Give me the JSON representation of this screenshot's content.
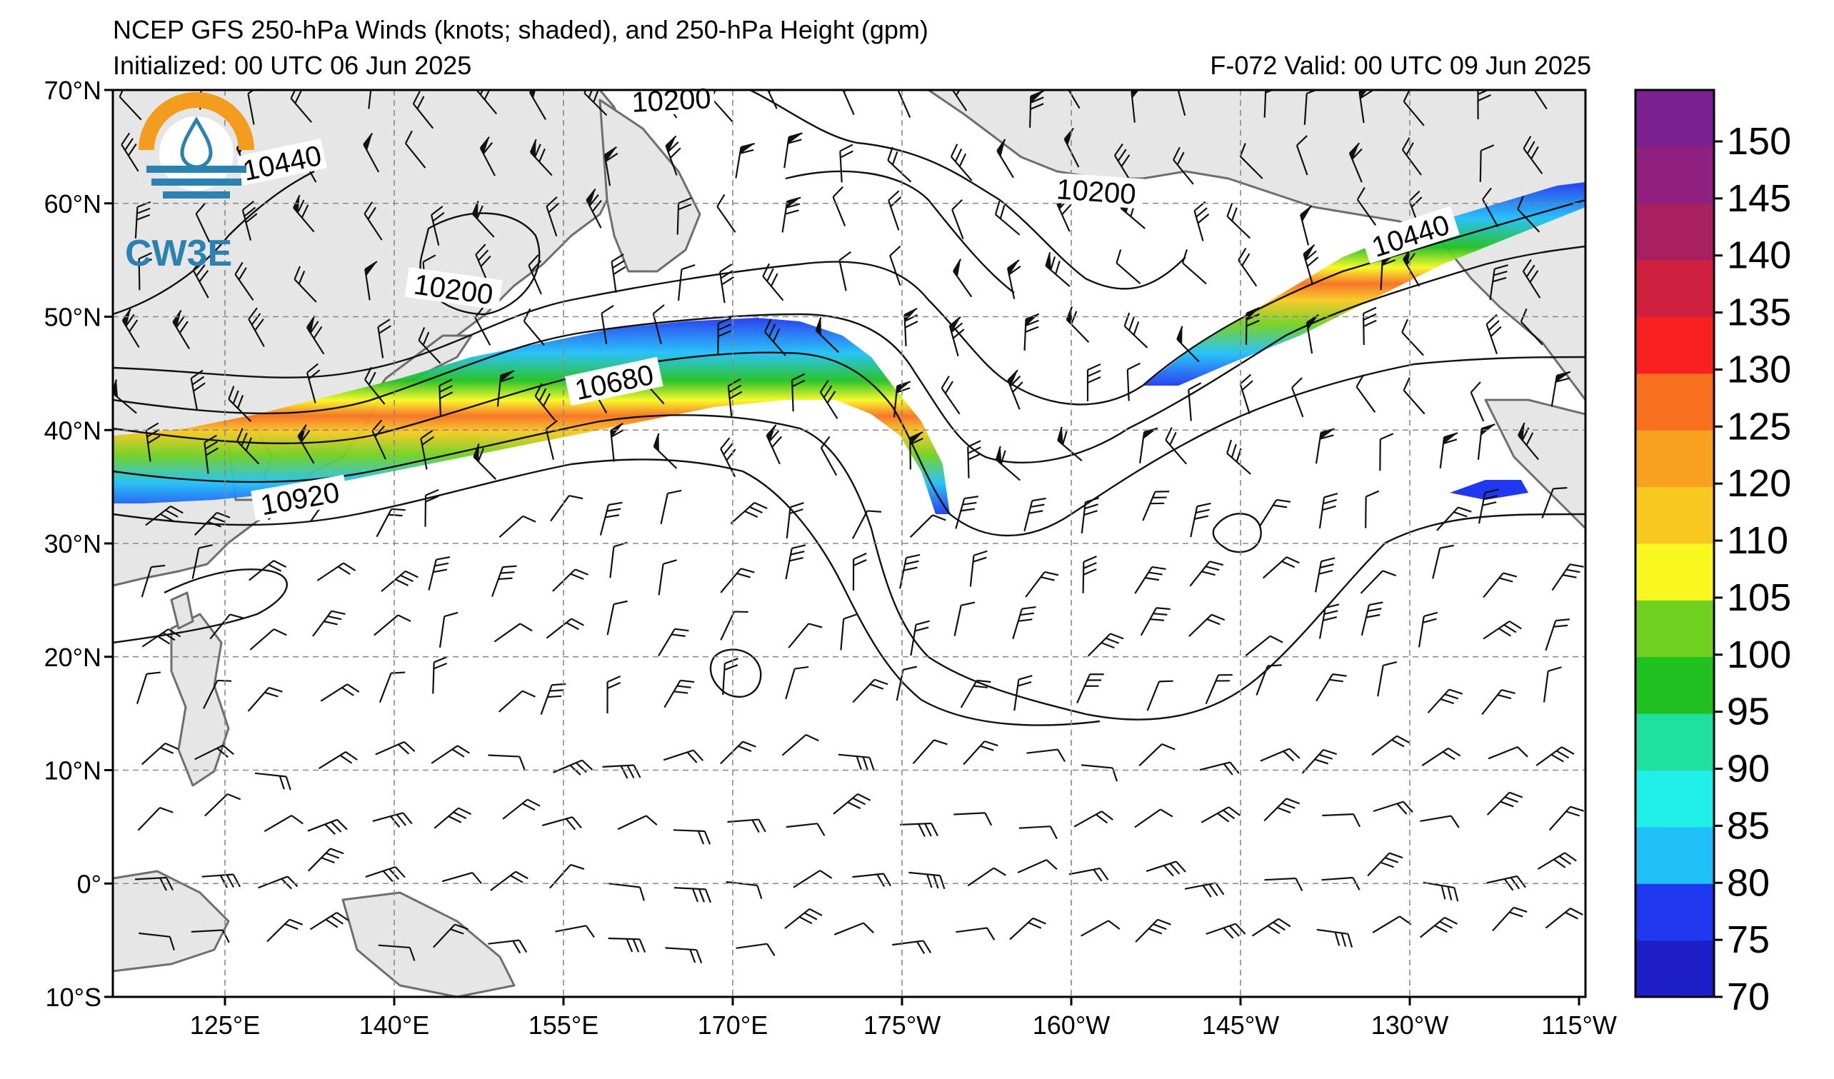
{
  "title": {
    "line1": "NCEP GFS 250-hPa Winds (knots; shaded), and 250-hPa Height (gpm)",
    "line2": "Initialized: 00 UTC 06 Jun 2025",
    "valid": "F-072  Valid: 00 UTC 09 Jun 2025"
  },
  "logo": {
    "text": "CW3E",
    "icon": "cw3e-water-drop-logo"
  },
  "map": {
    "lat_labels": [
      "70°N",
      "60°N",
      "50°N",
      "40°N",
      "30°N",
      "20°N",
      "10°N",
      "0°",
      "10°S"
    ],
    "lon_labels": [
      "125°E",
      "140°E",
      "155°E",
      "170°E",
      "175°W",
      "160°W",
      "145°W",
      "130°W",
      "115°W"
    ],
    "contour_labels": [
      "10200",
      "10440",
      "10200",
      "10200",
      "10440",
      "10680",
      "10920"
    ],
    "land_color": "#e6e6e6",
    "coast_color": "#6e6e6e",
    "grid_color": "#888888"
  },
  "colorbar": {
    "unit": "knots",
    "levels": [
      70,
      75,
      80,
      85,
      90,
      95,
      100,
      105,
      110,
      120,
      125,
      130,
      135,
      140,
      145,
      150
    ],
    "labels": [
      "150",
      "145",
      "140",
      "135",
      "130",
      "125",
      "120",
      "110",
      "105",
      "100",
      "95",
      "90",
      "85",
      "80",
      "75",
      "70"
    ],
    "colors": [
      "#1f1fc8",
      "#2038f0",
      "#20c0f8",
      "#20f0e8",
      "#20e0a0",
      "#20c020",
      "#70d020",
      "#f8f820",
      "#f8c820",
      "#f8a020",
      "#f87020",
      "#f82020",
      "#d02040",
      "#a82060",
      "#902080",
      "#7a2090"
    ]
  }
}
